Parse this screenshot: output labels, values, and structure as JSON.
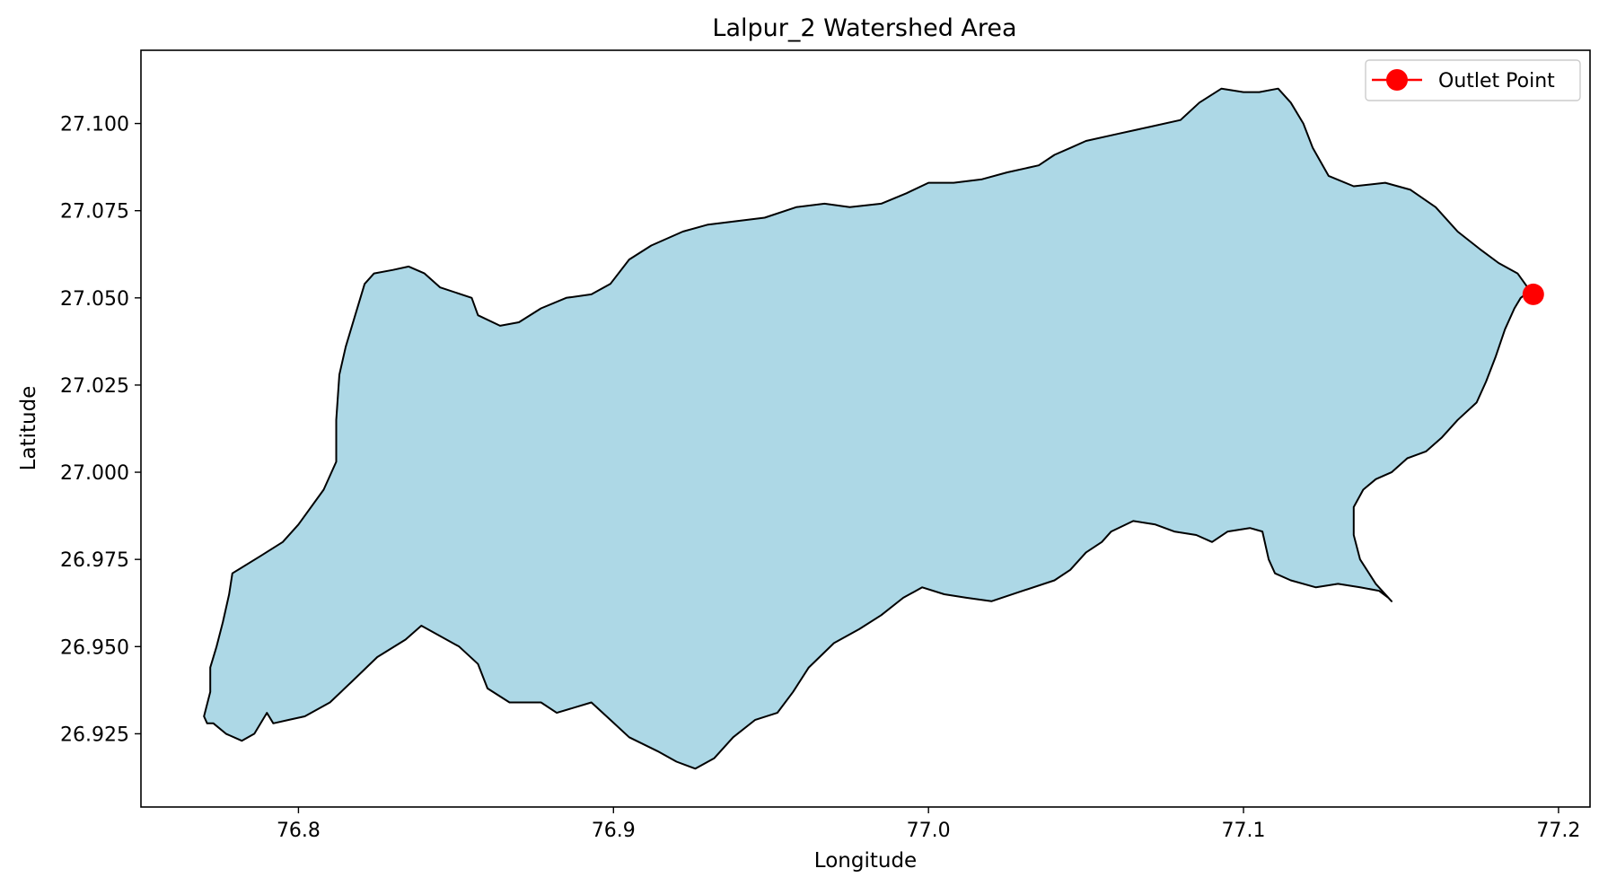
{
  "chart_data": {
    "type": "map",
    "title": "Lalpur_2 Watershed Area",
    "xlabel": "Longitude",
    "ylabel": "Latitude",
    "xlim": [
      76.75,
      77.21
    ],
    "ylim": [
      26.904,
      27.121
    ],
    "x_ticks": [
      {
        "value": 76.8,
        "label": "76.8"
      },
      {
        "value": 76.9,
        "label": "76.9"
      },
      {
        "value": 77.0,
        "label": "77.0"
      },
      {
        "value": 77.1,
        "label": "77.1"
      },
      {
        "value": 77.2,
        "label": "77.2"
      }
    ],
    "y_ticks": [
      {
        "value": 26.925,
        "label": "26.925"
      },
      {
        "value": 26.95,
        "label": "26.950"
      },
      {
        "value": 26.975,
        "label": "26.975"
      },
      {
        "value": 27.0,
        "label": "27.000"
      },
      {
        "value": 27.025,
        "label": "27.025"
      },
      {
        "value": 27.05,
        "label": "27.050"
      },
      {
        "value": 27.075,
        "label": "27.075"
      },
      {
        "value": 27.1,
        "label": "27.100"
      }
    ],
    "grid": false,
    "legend": {
      "placement": "top-right",
      "entries": [
        {
          "label": "Outlet Point",
          "color": "#ff0000",
          "marker": "circle"
        }
      ]
    },
    "watershed": {
      "fill": "#add8e6",
      "stroke": "#000000",
      "boundary": [
        [
          76.773,
          26.928
        ],
        [
          76.777,
          26.925
        ],
        [
          76.782,
          26.923
        ],
        [
          76.786,
          26.925
        ],
        [
          76.79,
          26.931
        ],
        [
          76.792,
          26.928
        ],
        [
          76.797,
          26.929
        ],
        [
          76.802,
          26.93
        ],
        [
          76.81,
          26.934
        ],
        [
          76.817,
          26.94
        ],
        [
          76.825,
          26.947
        ],
        [
          76.834,
          26.952
        ],
        [
          76.839,
          26.956
        ],
        [
          76.845,
          26.953
        ],
        [
          76.851,
          26.95
        ],
        [
          76.857,
          26.945
        ],
        [
          76.86,
          26.938
        ],
        [
          76.867,
          26.934
        ],
        [
          76.877,
          26.934
        ],
        [
          76.882,
          26.931
        ],
        [
          76.893,
          26.934
        ],
        [
          76.899,
          26.929
        ],
        [
          76.905,
          26.924
        ],
        [
          76.914,
          26.92
        ],
        [
          76.92,
          26.917
        ],
        [
          76.926,
          26.915
        ],
        [
          76.932,
          26.918
        ],
        [
          76.938,
          26.924
        ],
        [
          76.945,
          26.929
        ],
        [
          76.952,
          26.931
        ],
        [
          76.957,
          26.937
        ],
        [
          76.962,
          26.944
        ],
        [
          76.97,
          26.951
        ],
        [
          76.978,
          26.955
        ],
        [
          76.985,
          26.959
        ],
        [
          76.992,
          26.964
        ],
        [
          76.998,
          26.967
        ],
        [
          77.005,
          26.965
        ],
        [
          77.012,
          26.964
        ],
        [
          77.02,
          26.963
        ],
        [
          77.03,
          26.966
        ],
        [
          77.04,
          26.969
        ],
        [
          77.045,
          26.972
        ],
        [
          77.05,
          26.977
        ],
        [
          77.055,
          26.98
        ],
        [
          77.058,
          26.983
        ],
        [
          77.065,
          26.986
        ],
        [
          77.072,
          26.985
        ],
        [
          77.078,
          26.983
        ],
        [
          77.085,
          26.982
        ],
        [
          77.09,
          26.98
        ],
        [
          77.095,
          26.983
        ],
        [
          77.102,
          26.984
        ],
        [
          77.106,
          26.983
        ],
        [
          77.108,
          26.975
        ],
        [
          77.11,
          26.971
        ],
        [
          77.115,
          26.969
        ],
        [
          77.123,
          26.967
        ],
        [
          77.13,
          26.968
        ],
        [
          77.137,
          26.967
        ],
        [
          77.143,
          26.966
        ],
        [
          77.146,
          26.964
        ],
        [
          77.147,
          26.963
        ],
        [
          77.142,
          26.968
        ],
        [
          77.137,
          26.975
        ],
        [
          77.135,
          26.982
        ],
        [
          77.135,
          26.99
        ],
        [
          77.138,
          26.995
        ],
        [
          77.142,
          26.998
        ],
        [
          77.147,
          27.0
        ],
        [
          77.152,
          27.004
        ],
        [
          77.158,
          27.006
        ],
        [
          77.163,
          27.01
        ],
        [
          77.168,
          27.015
        ],
        [
          77.174,
          27.02
        ],
        [
          77.177,
          27.026
        ],
        [
          77.18,
          27.033
        ],
        [
          77.183,
          27.041
        ],
        [
          77.186,
          27.047
        ],
        [
          77.188,
          27.05
        ],
        [
          77.191,
          27.052
        ],
        [
          77.187,
          27.057
        ],
        [
          77.181,
          27.06
        ],
        [
          77.175,
          27.064
        ],
        [
          77.168,
          27.069
        ],
        [
          77.161,
          27.076
        ],
        [
          77.153,
          27.081
        ],
        [
          77.145,
          27.083
        ],
        [
          77.135,
          27.082
        ],
        [
          77.127,
          27.085
        ],
        [
          77.122,
          27.093
        ],
        [
          77.119,
          27.1
        ],
        [
          77.115,
          27.106
        ],
        [
          77.111,
          27.11
        ],
        [
          77.105,
          27.109
        ],
        [
          77.1,
          27.109
        ],
        [
          77.093,
          27.11
        ],
        [
          77.086,
          27.106
        ],
        [
          77.08,
          27.101
        ],
        [
          77.07,
          27.099
        ],
        [
          77.06,
          27.097
        ],
        [
          77.05,
          27.095
        ],
        [
          77.045,
          27.093
        ],
        [
          77.04,
          27.091
        ],
        [
          77.035,
          27.088
        ],
        [
          77.025,
          27.086
        ],
        [
          77.017,
          27.084
        ],
        [
          77.008,
          27.083
        ],
        [
          77.0,
          27.083
        ],
        [
          76.993,
          27.08
        ],
        [
          76.985,
          27.077
        ],
        [
          76.975,
          27.076
        ],
        [
          76.967,
          27.077
        ],
        [
          76.958,
          27.076
        ],
        [
          76.948,
          27.073
        ],
        [
          76.939,
          27.072
        ],
        [
          76.93,
          27.071
        ],
        [
          76.922,
          27.069
        ],
        [
          76.912,
          27.065
        ],
        [
          76.905,
          27.061
        ],
        [
          76.899,
          27.054
        ],
        [
          76.893,
          27.051
        ],
        [
          76.885,
          27.05
        ],
        [
          76.877,
          27.047
        ],
        [
          76.87,
          27.043
        ],
        [
          76.864,
          27.042
        ],
        [
          76.857,
          27.045
        ],
        [
          76.855,
          27.05
        ],
        [
          76.845,
          27.053
        ],
        [
          76.84,
          27.057
        ],
        [
          76.835,
          27.059
        ],
        [
          76.83,
          27.058
        ],
        [
          76.824,
          27.057
        ],
        [
          76.821,
          27.054
        ],
        [
          76.818,
          27.045
        ],
        [
          76.815,
          27.036
        ],
        [
          76.813,
          27.028
        ],
        [
          76.812,
          27.015
        ],
        [
          76.812,
          27.003
        ],
        [
          76.808,
          26.995
        ],
        [
          76.8,
          26.985
        ],
        [
          76.795,
          26.98
        ],
        [
          76.788,
          26.976
        ],
        [
          76.779,
          26.971
        ],
        [
          76.778,
          26.965
        ],
        [
          76.776,
          26.957
        ],
        [
          76.774,
          26.95
        ],
        [
          76.772,
          26.944
        ],
        [
          76.772,
          26.937
        ],
        [
          76.77,
          26.93
        ],
        [
          76.771,
          26.928
        ],
        [
          76.773,
          26.928
        ]
      ]
    },
    "outlet_point": {
      "lon": 77.192,
      "lat": 27.051,
      "label": "Outlet Point",
      "color": "#ff0000"
    }
  }
}
